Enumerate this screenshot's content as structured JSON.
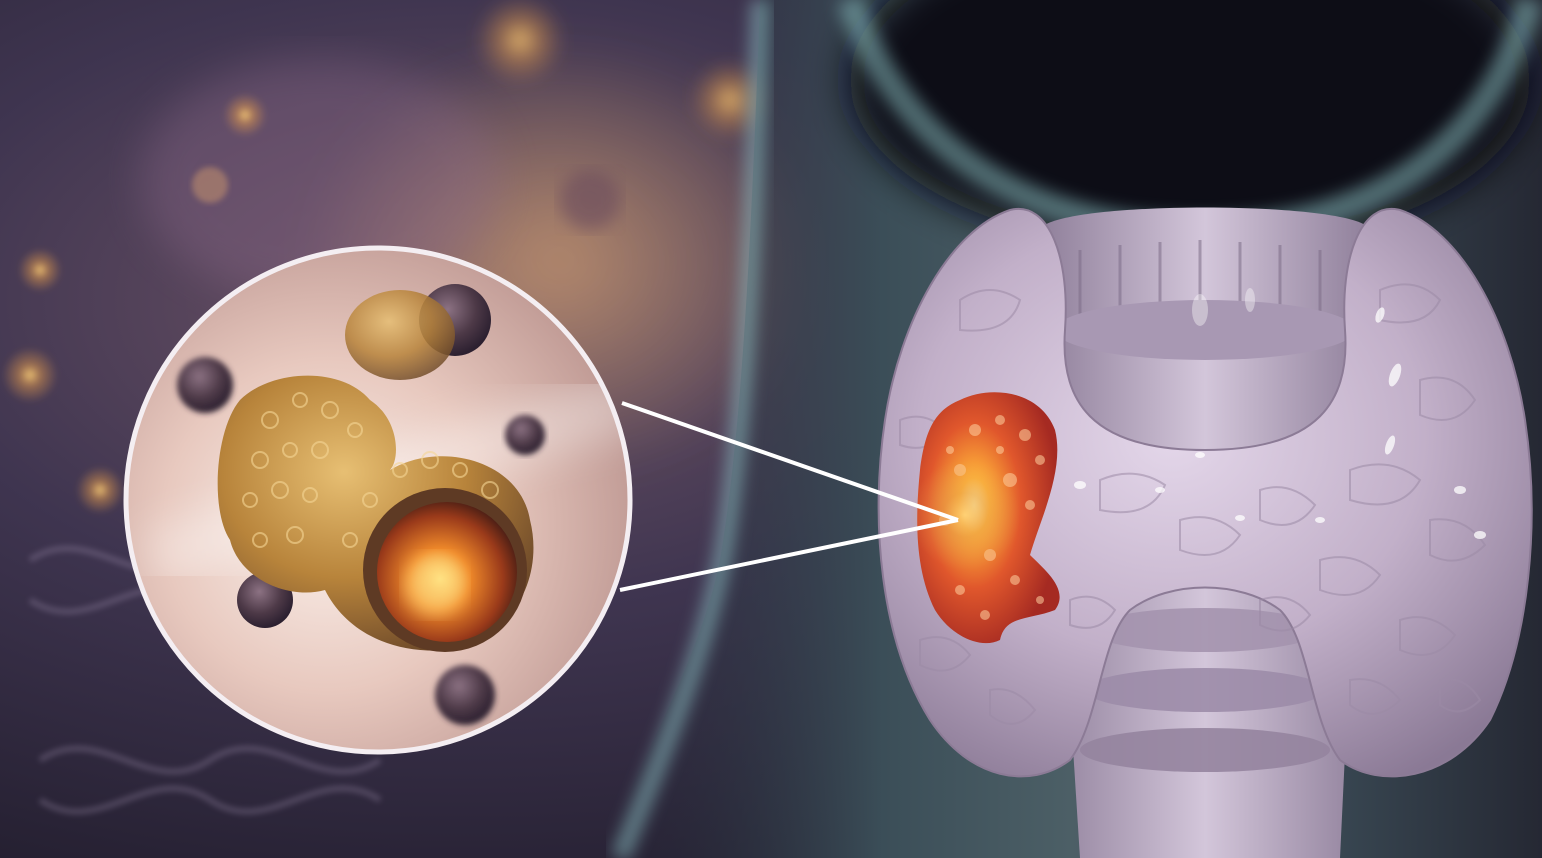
{
  "palette": {
    "background": "#3a3148",
    "neck_glow": "#8fc6c8",
    "gland": "#c9b8cf",
    "gland_shadow": "#8c7b96",
    "trachea": "#b3a3bd",
    "tumor": "#d9482a",
    "tumor_core": "#ffb43a",
    "inset_ring": "#f4eef2",
    "cell_body": "#b9863e",
    "cell_dark": "#5a4553",
    "leader_lines": "#ffffff"
  },
  "elements": [
    "blurred-cell-background",
    "neck-silhouette",
    "thyroid-gland",
    "trachea",
    "thyroid-tumor",
    "magnified-inset",
    "cancer-cell-cluster",
    "callout-lines"
  ]
}
